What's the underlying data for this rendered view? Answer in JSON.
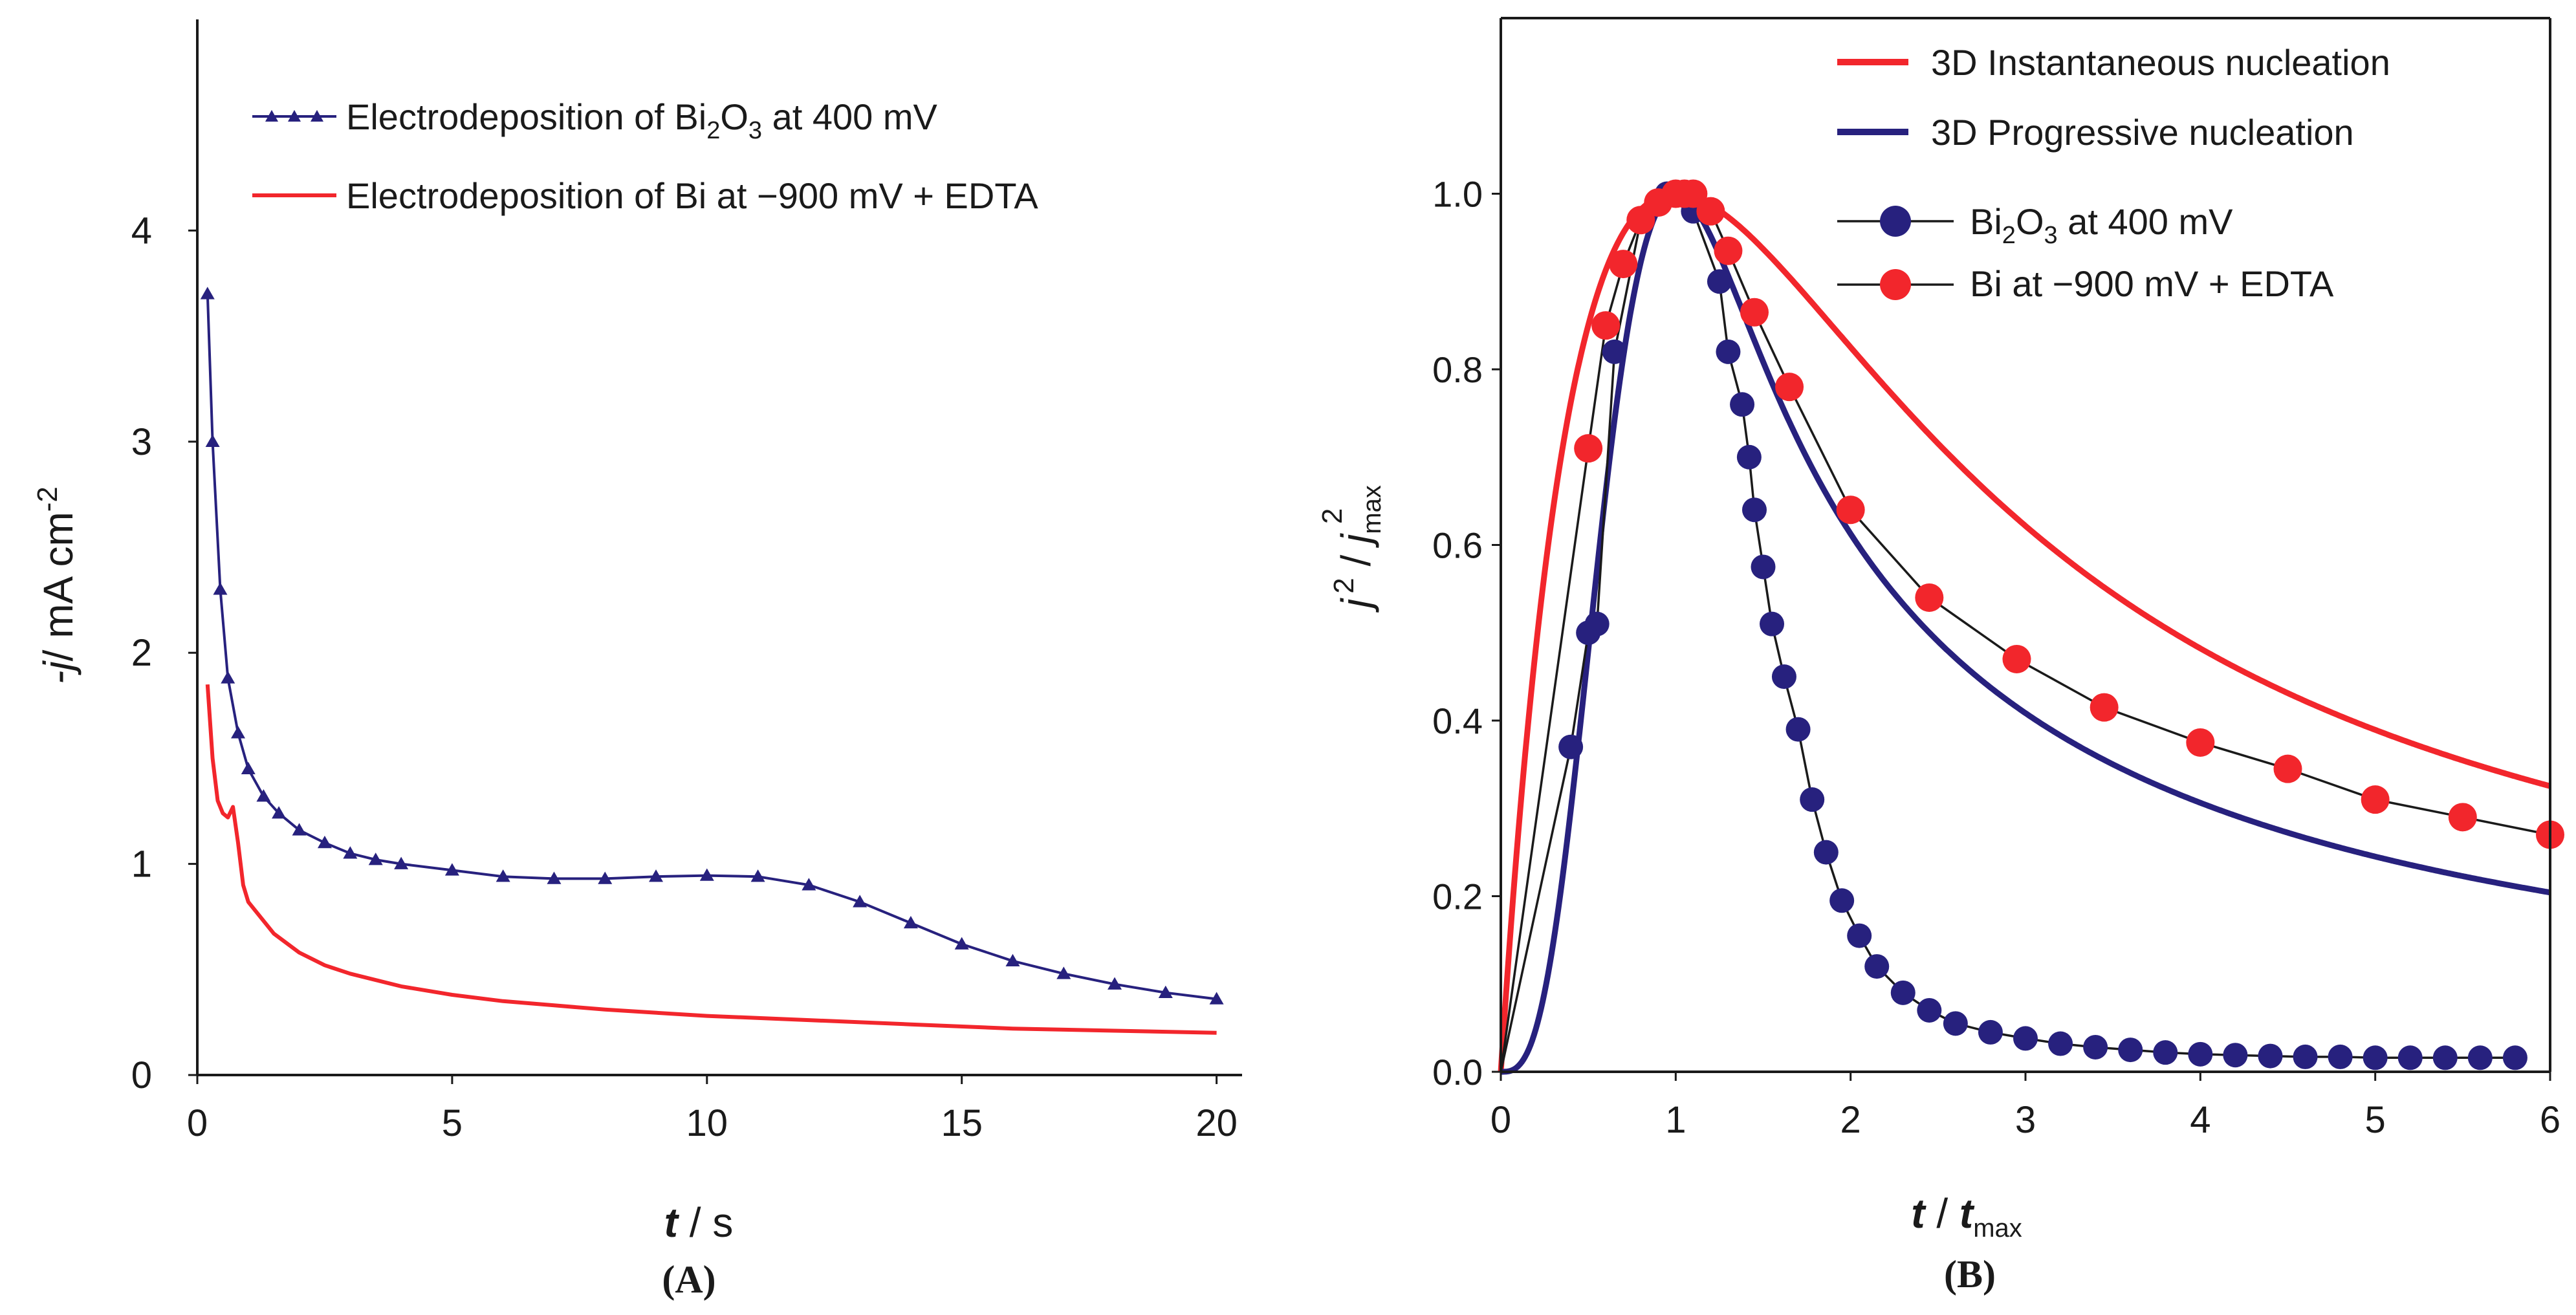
{
  "colors": {
    "blue": "#27217e",
    "red": "#f2262c",
    "black": "#1a1a1a",
    "background": "#ffffff"
  },
  "chart_data": [
    {
      "type": "line",
      "panel_label": "(A)",
      "xlabel_italic": "t",
      "xlabel_rest": " / s",
      "ylabel_italic": "-j",
      "ylabel_rest": "/ mA cm",
      "ylabel_sup": "-2",
      "xlim": [
        0,
        20.5
      ],
      "ylim": [
        0,
        5.0
      ],
      "xticks": [
        0,
        5,
        10,
        15,
        20
      ],
      "yticks": [
        0,
        1,
        2,
        3,
        4
      ],
      "legend": "top-left",
      "series": [
        {
          "name": "Electrodeposition of Bi2O3 at 400 mV",
          "legend_pre": "Electrodeposition of Bi",
          "legend_sub1": "2",
          "legend_mid": "O",
          "legend_sub2": "3",
          "legend_post": " at 400 mV",
          "color": "#27217e",
          "marker": "triangle",
          "x": [
            0.2,
            0.3,
            0.45,
            0.6,
            0.8,
            1.0,
            1.3,
            1.6,
            2.0,
            2.5,
            3.0,
            3.5,
            4.0,
            5.0,
            6.0,
            7.0,
            8.0,
            9.0,
            10.0,
            11.0,
            12.0,
            13.0,
            14.0,
            15.0,
            16.0,
            17.0,
            18.0,
            19.0,
            20.0
          ],
          "y": [
            3.7,
            3.0,
            2.3,
            1.88,
            1.62,
            1.45,
            1.32,
            1.24,
            1.16,
            1.1,
            1.05,
            1.02,
            1.0,
            0.97,
            0.94,
            0.93,
            0.93,
            0.94,
            0.945,
            0.94,
            0.9,
            0.82,
            0.72,
            0.62,
            0.54,
            0.48,
            0.43,
            0.39,
            0.36
          ]
        },
        {
          "name": "Electrodeposition of Bi at −900 mV + EDTA",
          "color": "#f2262c",
          "marker": "none",
          "x": [
            0.2,
            0.3,
            0.4,
            0.5,
            0.6,
            0.7,
            0.8,
            0.9,
            1.0,
            1.2,
            1.5,
            2.0,
            2.5,
            3.0,
            4.0,
            5.0,
            6.0,
            7.0,
            8.0,
            10.0,
            12.0,
            14.0,
            16.0,
            18.0,
            20.0
          ],
          "y": [
            1.85,
            1.5,
            1.3,
            1.24,
            1.22,
            1.27,
            1.1,
            0.9,
            0.82,
            0.76,
            0.67,
            0.58,
            0.52,
            0.48,
            0.42,
            0.38,
            0.35,
            0.33,
            0.31,
            0.28,
            0.26,
            0.24,
            0.22,
            0.21,
            0.2
          ]
        }
      ]
    },
    {
      "type": "line",
      "panel_label": "(B)",
      "xlabel_italic1": "t",
      "xlabel_mid": " / ",
      "xlabel_italic2": "t",
      "xlabel_sub": "max",
      "ylabel_j": "j",
      "ylabel_sup": "2",
      "ylabel_slash": " / ",
      "ylabel_j2": "j",
      "ylabel_sub": "max",
      "ylabel_sup2": "2",
      "xlim": [
        0,
        6
      ],
      "ylim": [
        0,
        1.2
      ],
      "xticks": [
        0,
        1,
        2,
        3,
        4,
        5,
        6
      ],
      "yticks": [
        "0.0",
        "0.2",
        "0.4",
        "0.6",
        "0.8",
        "1.0"
      ],
      "legend": "top-right",
      "series": [
        {
          "name": "3D Instantaneous nucleation",
          "color": "#f2262c",
          "kind": "theory-instantaneous"
        },
        {
          "name": "3D Progressive nucleation",
          "color": "#27217e",
          "kind": "theory-progressive"
        },
        {
          "name": "Bi2O3 at 400 mV",
          "legend_pre": "Bi",
          "legend_sub1": "2",
          "legend_mid": "O",
          "legend_sub2": "3",
          "legend_post": " at 400 mV",
          "color": "#27217e",
          "kind": "experimental",
          "x": [
            0.4,
            0.5,
            0.55,
            0.65,
            0.8,
            0.95,
            1.0,
            1.1,
            1.25,
            1.3,
            1.38,
            1.42,
            1.45,
            1.5,
            1.55,
            1.62,
            1.7,
            1.78,
            1.86,
            1.95,
            2.05,
            2.15,
            2.3,
            2.45,
            2.6,
            2.8,
            3.0,
            3.2,
            3.4,
            3.6,
            3.8,
            4.0,
            4.2,
            4.4,
            4.6,
            4.8,
            5.0,
            5.2,
            5.4,
            5.6,
            5.8
          ],
          "y": [
            0.37,
            0.5,
            0.51,
            0.82,
            0.97,
            1.0,
            1.0,
            0.98,
            0.9,
            0.82,
            0.76,
            0.7,
            0.64,
            0.575,
            0.51,
            0.45,
            0.39,
            0.31,
            0.25,
            0.195,
            0.155,
            0.12,
            0.09,
            0.07,
            0.055,
            0.045,
            0.038,
            0.032,
            0.028,
            0.025,
            0.022,
            0.02,
            0.019,
            0.018,
            0.017,
            0.017,
            0.016,
            0.016,
            0.016,
            0.016,
            0.016
          ]
        },
        {
          "name": "Bi at −900 mV + EDTA",
          "color": "#f2262c",
          "kind": "experimental",
          "x": [
            0.5,
            0.6,
            0.7,
            0.8,
            0.9,
            1.0,
            1.05,
            1.1,
            1.2,
            1.3,
            1.45,
            1.65,
            2.0,
            2.45,
            2.95,
            3.45,
            4.0,
            4.5,
            5.0,
            5.5,
            6.0
          ],
          "y": [
            0.71,
            0.85,
            0.92,
            0.97,
            0.99,
            1.0,
            1.0,
            1.0,
            0.98,
            0.935,
            0.865,
            0.78,
            0.64,
            0.54,
            0.47,
            0.415,
            0.375,
            0.345,
            0.31,
            0.29,
            0.27
          ]
        }
      ]
    }
  ]
}
